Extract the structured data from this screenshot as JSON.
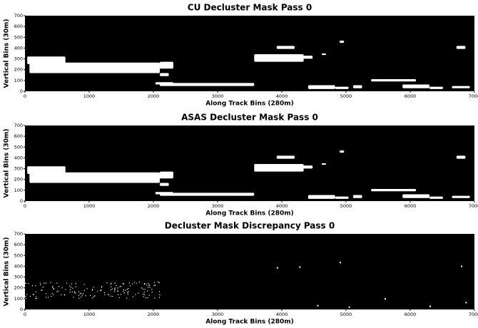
{
  "chart_data": [
    {
      "type": "image",
      "title": "CU Decluster Mask Pass 0",
      "xlabel": "Along Track Bins (280m)",
      "ylabel": "Vertical Bins (30m)",
      "xlim": [
        0,
        7000
      ],
      "ylim": [
        0,
        700
      ],
      "xticks": [
        0,
        1000,
        2000,
        3000,
        4000,
        5000,
        6000,
        7000
      ],
      "yticks": [
        0,
        100,
        200,
        300,
        400,
        500,
        600,
        700
      ]
    },
    {
      "type": "image",
      "title": "ASAS Decluster Mask Pass 0",
      "xlabel": "Along Track Bins (280m)",
      "ylabel": "Vertical Bins (30m)",
      "xlim": [
        0,
        7000
      ],
      "ylim": [
        0,
        700
      ],
      "xticks": [
        0,
        1000,
        2000,
        3000,
        4000,
        5000,
        6000,
        7000
      ],
      "yticks": [
        0,
        100,
        200,
        300,
        400,
        500,
        600,
        700
      ]
    },
    {
      "type": "image",
      "title": "Decluster Mask Discrepancy Pass 0",
      "xlabel": "Along Track Bins (280m)",
      "ylabel": "Vertical Bins (30m)",
      "xlim": [
        0,
        7000
      ],
      "ylim": [
        0,
        700
      ],
      "xticks": [
        0,
        1000,
        2000,
        3000,
        4000,
        5000,
        6000,
        7000
      ],
      "yticks": [
        0,
        100,
        200,
        300,
        400,
        500,
        600,
        700
      ]
    }
  ]
}
